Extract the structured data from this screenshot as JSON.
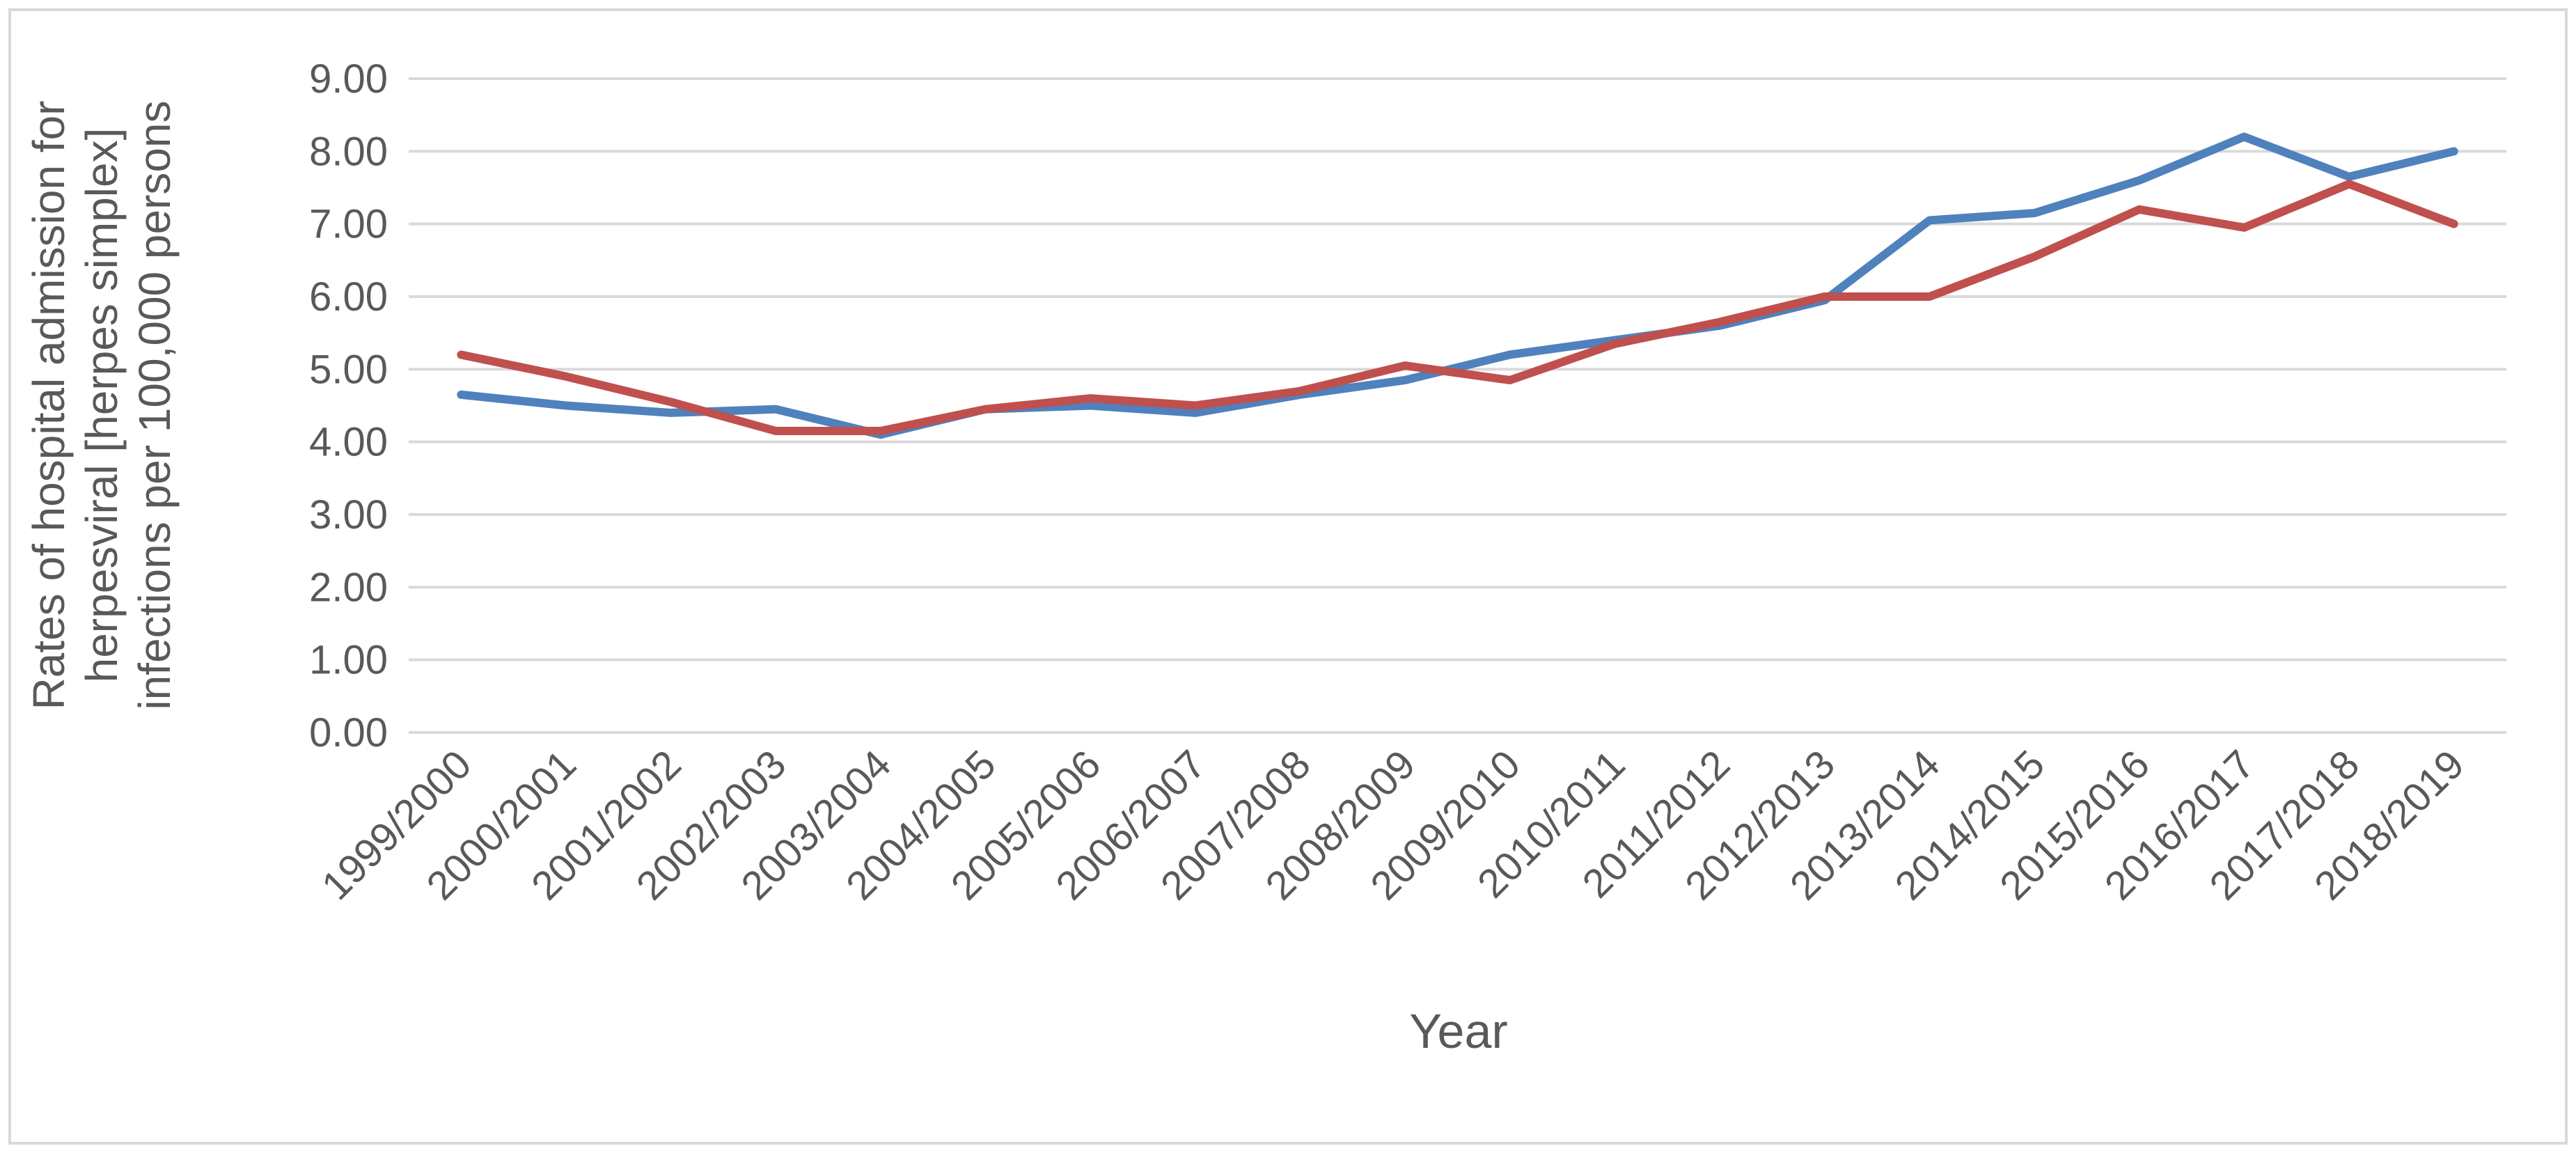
{
  "chart_data": {
    "type": "line",
    "title": "",
    "xlabel": "Year",
    "ylabel": "Rates of hospital admission for herpesviral [herpes simplex] infections per 100,000 persons",
    "ylabel_lines": [
      "Rates of hospital admission for",
      "herpesviral [herpes simplex]",
      "infections per 100,000 persons"
    ],
    "categories": [
      "1999/2000",
      "2000/2001",
      "2001/2002",
      "2002/2003",
      "2003/2004",
      "2004/2005",
      "2005/2006",
      "2006/2007",
      "2007/2008",
      "2008/2009",
      "2009/2010",
      "2010/2011",
      "2011/2012",
      "2012/2013",
      "2013/2014",
      "2014/2015",
      "2015/2016",
      "2016/2017",
      "2017/2018",
      "2018/2019"
    ],
    "series": [
      {
        "name": "blue-series",
        "color": "#4F81BD",
        "values": [
          4.65,
          4.5,
          4.4,
          4.45,
          4.1,
          4.45,
          4.5,
          4.4,
          4.65,
          4.85,
          5.2,
          5.4,
          5.6,
          5.95,
          7.05,
          7.15,
          7.6,
          8.2,
          7.65,
          8.0
        ]
      },
      {
        "name": "red-series",
        "color": "#C0504D",
        "values": [
          5.2,
          4.9,
          4.55,
          4.15,
          4.15,
          4.45,
          4.6,
          4.5,
          4.7,
          5.05,
          4.85,
          5.35,
          5.65,
          6.0,
          6.0,
          6.55,
          7.2,
          6.95,
          7.55,
          7.0
        ]
      }
    ],
    "ylim": [
      0,
      9
    ],
    "y_tick_step": 1,
    "y_tick_decimals": 2,
    "y_tick_labels": [
      "0.00",
      "1.00",
      "2.00",
      "3.00",
      "4.00",
      "5.00",
      "6.00",
      "7.00",
      "8.00",
      "9.00"
    ],
    "grid": "horizontal",
    "legend_position": "none",
    "gridline_color": "#D9D9D9",
    "border_color": "#D9D9D9",
    "label_color": "#595959",
    "background_color": "#FFFFFF",
    "line_width": 12
  }
}
